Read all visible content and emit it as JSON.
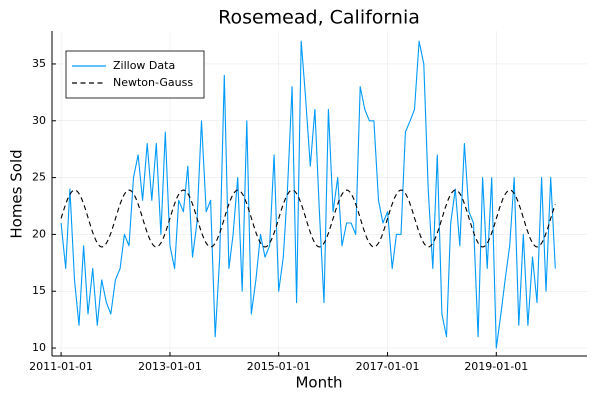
{
  "chart_data": {
    "type": "line",
    "title": "Rosemead, California",
    "xlabel": "Month",
    "ylabel": "Homes Sold",
    "x_ticks": [
      "2011-01-01",
      "2013-01-01",
      "2015-01-01",
      "2017-01-01",
      "2019-01-01"
    ],
    "y_ticks": [
      10,
      15,
      20,
      25,
      30,
      35
    ],
    "xlim": [
      "2010-11-01",
      "2020-09-01"
    ],
    "ylim": [
      9.3,
      37.9
    ],
    "grid": true,
    "legend_position": "top-left",
    "x_start": "2011-01-01",
    "x_step": "1 month",
    "series": [
      {
        "name": "Zillow Data",
        "color": "#009AF9",
        "style": "solid",
        "values": [
          21,
          17,
          24,
          16,
          12,
          19,
          13,
          17,
          12,
          16,
          14,
          13,
          16,
          17,
          20,
          19,
          25,
          27,
          23,
          28,
          23,
          28,
          20,
          29,
          19,
          17,
          23,
          22,
          26,
          18,
          21,
          30,
          22,
          23,
          11,
          18,
          34,
          17,
          20,
          25,
          15,
          30,
          13,
          16,
          20,
          18,
          19,
          27,
          15,
          18,
          24,
          33,
          14,
          37,
          32,
          26,
          31,
          22,
          14,
          31,
          22,
          25,
          19,
          21,
          21,
          20,
          33,
          31,
          30,
          30,
          23,
          21,
          22,
          17,
          20,
          20,
          29,
          30,
          31,
          37,
          35,
          24,
          17,
          27,
          13,
          11,
          21,
          24,
          19,
          28,
          22,
          21,
          11,
          25,
          17,
          25,
          10,
          13,
          16,
          19,
          25,
          12,
          20,
          12,
          18,
          14,
          25,
          15,
          25,
          17
        ]
      },
      {
        "name": "Newton-Gauss",
        "color": "#000000",
        "style": "dashed",
        "fit": {
          "mean": 21.4,
          "amplitude": 2.5,
          "period_months": 12,
          "peak_month_offset": 3
        }
      }
    ]
  }
}
